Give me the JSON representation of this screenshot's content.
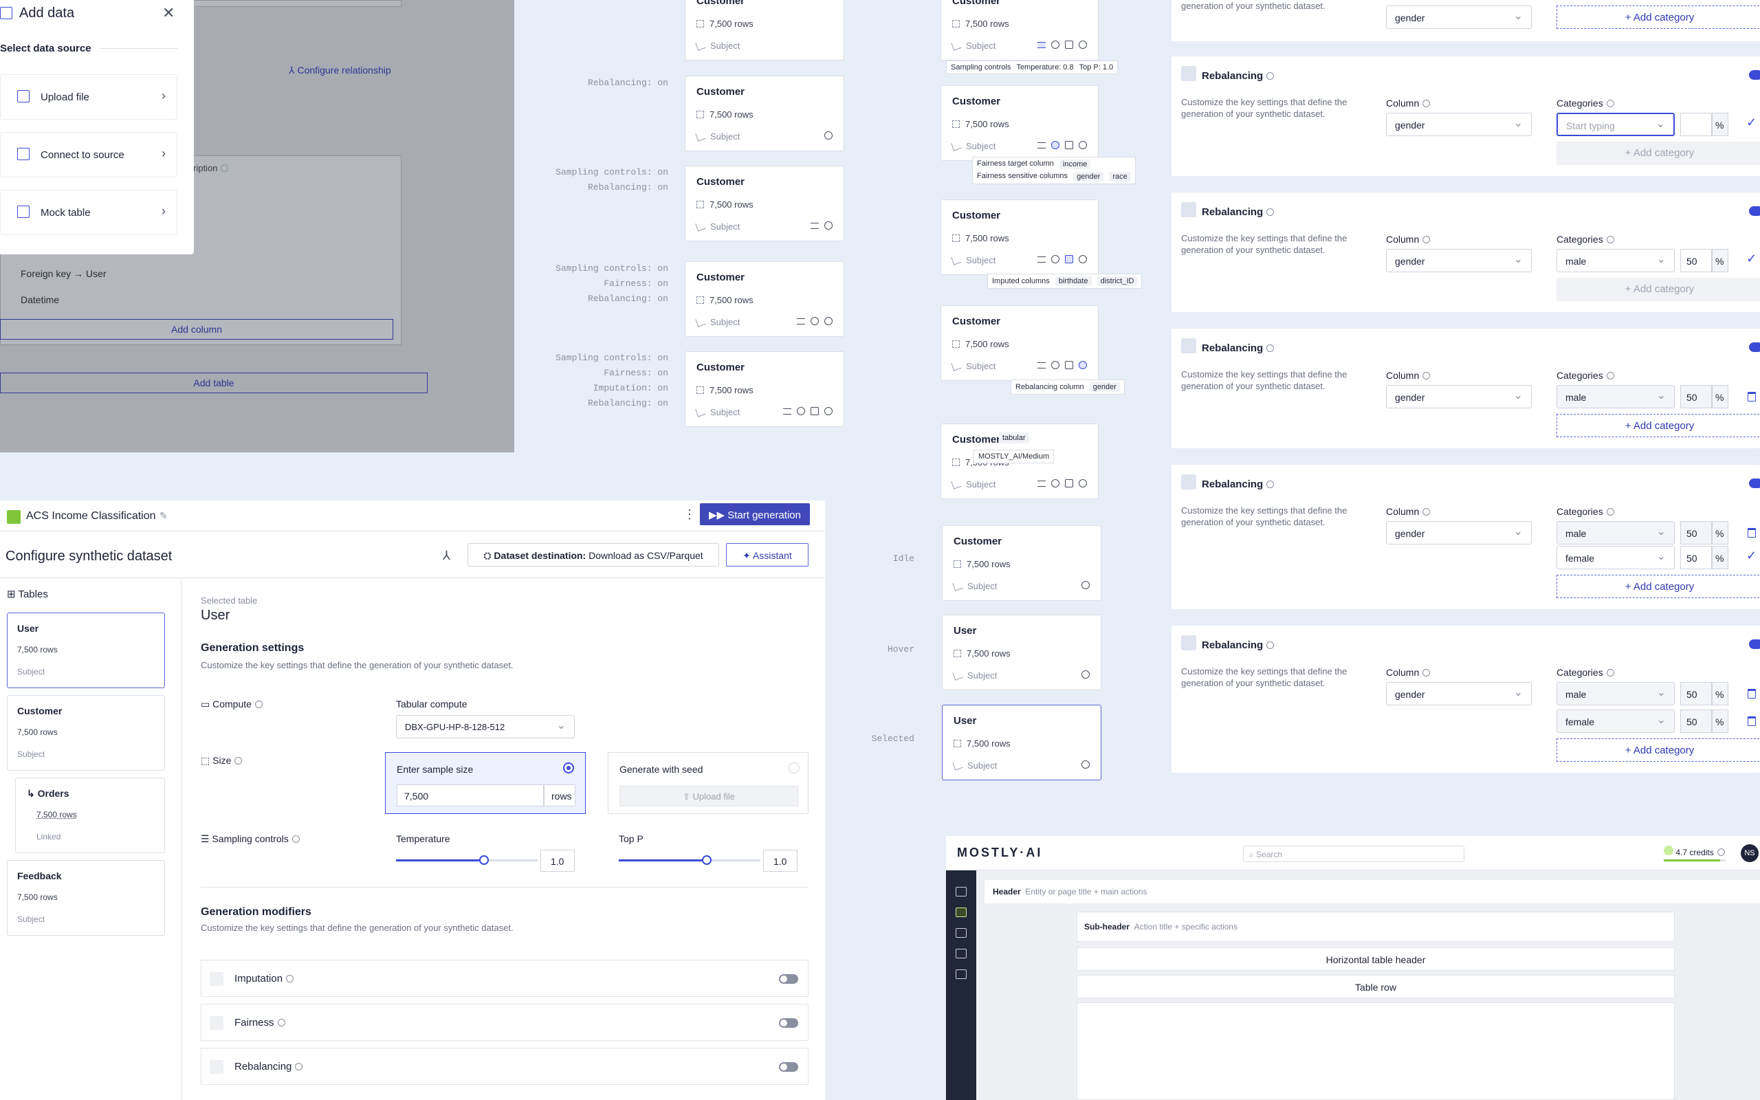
{
  "add_data": {
    "title": "Add data",
    "section": "Select data source",
    "options": [
      "Upload file",
      "Connect to source",
      "Mock table"
    ],
    "configure_relationship": "Configure relationship",
    "description_header": "ription",
    "foreign_key": "Foreign key → User",
    "datetime": "Datetime",
    "add_column": "Add column",
    "add_table": "Add table"
  },
  "col1": {
    "labels": [
      "Rebalancing: on",
      "Sampling controls: on",
      "Rebalancing: on",
      "Sampling controls: on",
      "Fairness: on",
      "Rebalancing: on",
      "Sampling controls: on",
      "Fairness: on",
      "Imputation: on",
      "Rebalancing: on"
    ],
    "card_title": "Customer",
    "rows": "7,500 rows",
    "subject": "Subject"
  },
  "col2": {
    "card_title": "Customer",
    "user_title": "User",
    "rows": "7,500 rows",
    "subject": "Subject",
    "tip_sampling": [
      "Sampling controls",
      "Temperature: 0.8",
      "Top P: 1.0"
    ],
    "tip_fairness_target": [
      "Fairness target column",
      "income"
    ],
    "tip_fairness_sensitive": [
      "Fairness sensitive columns",
      "gender",
      "race"
    ],
    "tip_imputed": [
      "Imputed columns",
      "birthdate",
      "district_ID"
    ],
    "tip_rebalancing": [
      "Rebalancing column",
      "gender"
    ],
    "tag_tabular": "tabular",
    "tip_compute": "MOSTLY_AI/Medium",
    "states": [
      "Idle",
      "Hover",
      "Selected"
    ]
  },
  "rebalancing": {
    "title": "Rebalancing",
    "desc": "Customize the key settings that define the generation of your synthetic dataset.",
    "column_label": "Column",
    "categories_label": "Categories",
    "column_value": "gender",
    "placeholder": "Start typing",
    "male": "male",
    "female": "female",
    "fifty": "50",
    "pct": "%",
    "add_category": "Add category"
  },
  "config": {
    "project": "ACS Income Classification",
    "start_generation": "Start generation",
    "page_title": "Configure synthetic dataset",
    "destination_label": "Dataset destination:",
    "destination_value": "Download as CSV/Parquet",
    "assistant": "Assistant",
    "tables_label": "Tables",
    "tables": [
      {
        "name": "User",
        "rows": "7,500 rows",
        "kind": "Subject"
      },
      {
        "name": "Customer",
        "rows": "7,500 rows",
        "kind": "Subject"
      },
      {
        "name": "Orders",
        "rows": "7,500 rows",
        "kind": "Linked"
      },
      {
        "name": "Feedback",
        "rows": "7,500 rows",
        "kind": "Subject"
      }
    ],
    "selected_table_label": "Selected table",
    "selected_table": "User",
    "gen_settings": "Generation settings",
    "gen_settings_desc": "Customize the key settings that define the generation of your synthetic dataset.",
    "compute": "Compute",
    "tabular_compute": "Tabular compute",
    "compute_value": "DBX-GPU-HP-8-128-512",
    "size": "Size",
    "enter_sample_size": "Enter sample size",
    "sample_size": "7,500",
    "rows_unit": "rows",
    "generate_with_seed": "Generate with seed",
    "upload_file": "Upload file",
    "sampling_controls": "Sampling controls",
    "temperature": "Temperature",
    "temperature_value": "1.0",
    "top_p": "Top P",
    "top_p_value": "1.0",
    "gen_modifiers": "Generation modifiers",
    "gen_modifiers_desc": "Customize the key settings that define the generation of your synthetic dataset.",
    "modifiers": [
      "Imputation",
      "Fairness",
      "Rebalancing"
    ]
  },
  "app": {
    "logo": "MOSTLY·AI",
    "search_placeholder": "Search",
    "credits": "4.7 credits",
    "avatar": "NS",
    "header": "Header",
    "header_hint": "Entity or page title + main actions",
    "subheader": "Sub-header",
    "subheader_hint": "Action title + specific actions",
    "table_header": "Horizontal table header",
    "table_row": "Table row"
  },
  "colors": {
    "accent": "#3f47b9",
    "accent_light": "#dfe3ff",
    "bg": "#e7eef8"
  }
}
